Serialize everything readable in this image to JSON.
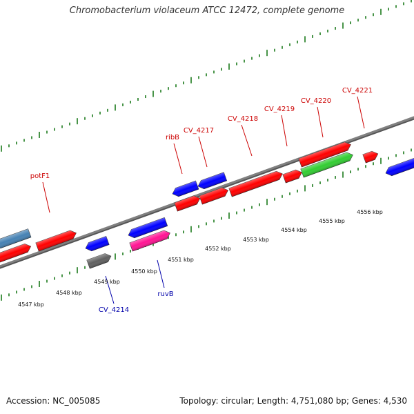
{
  "title": "Chromobacterium violaceum ATCC 12472, complete genome",
  "footer": {
    "accession": "Accession: NC_005085",
    "summary": "Topology: circular; Length: 4,751,080 bp; Genes: 4,530"
  },
  "colors": {
    "backbone": "#808080",
    "tick": "#1a7a1a",
    "label_forward": "#cc0000",
    "label_reverse": "#0000aa"
  },
  "scale_labels": [
    "4547 kbp",
    "4548 kbp",
    "4549 kbp",
    "4550 kbp",
    "4551 kbp",
    "4552 kbp",
    "4553 kbp",
    "4554 kbp",
    "4555 kbp",
    "4556 kbp"
  ],
  "gene_labels_forward": [
    "potF1",
    "ribB",
    "CV_4217",
    "CV_4218",
    "CV_4219",
    "CV_4220",
    "CV_4221"
  ],
  "gene_labels_reverse": [
    "CV_4214",
    "ruvB"
  ],
  "features": [
    {
      "color": "#4682b4",
      "strand": "reverse"
    },
    {
      "color": "#ff0000",
      "strand": "forward"
    },
    {
      "color": "#ff0000",
      "strand": "forward"
    },
    {
      "color": "#0000ff",
      "strand": "reverse"
    },
    {
      "color": "#606060",
      "strand": "forward"
    },
    {
      "color": "#0000ff",
      "strand": "reverse"
    },
    {
      "color": "#ff1493",
      "strand": "forward"
    },
    {
      "color": "#0000ff",
      "strand": "reverse"
    },
    {
      "color": "#0000ff",
      "strand": "reverse"
    },
    {
      "color": "#ff0000",
      "strand": "forward"
    },
    {
      "color": "#ff0000",
      "strand": "forward"
    },
    {
      "color": "#ff0000",
      "strand": "forward"
    },
    {
      "color": "#ff0000",
      "strand": "forward"
    },
    {
      "color": "#32cd32",
      "strand": "forward"
    },
    {
      "color": "#ff0000",
      "strand": "forward"
    },
    {
      "color": "#ff0000",
      "strand": "forward"
    },
    {
      "color": "#0000ff",
      "strand": "reverse"
    }
  ]
}
